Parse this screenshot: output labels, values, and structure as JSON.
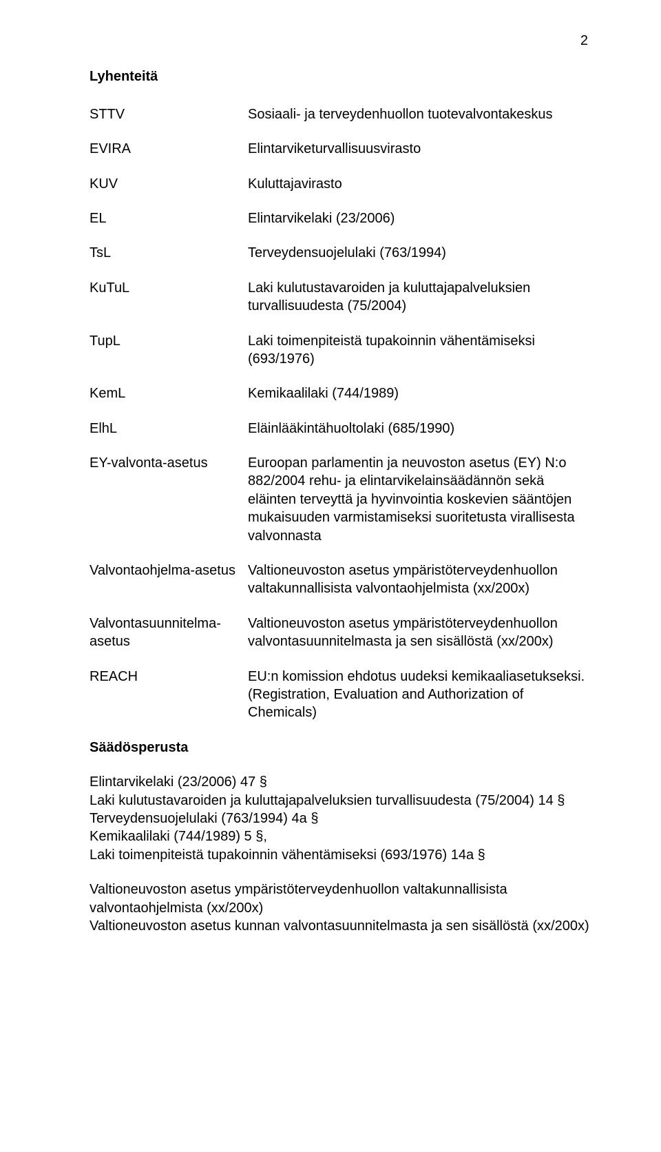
{
  "pageNumber": "2",
  "headings": {
    "abbrev": "Lyhenteitä",
    "basis": "Säädösperusta"
  },
  "abbrevs": [
    {
      "term": "STTV",
      "desc": "Sosiaali- ja terveydenhuollon tuotevalvontakeskus"
    },
    {
      "term": "EVIRA",
      "desc": "Elintarviketurvallisuusvirasto"
    },
    {
      "term": "KUV",
      "desc": "Kuluttajavirasto"
    },
    {
      "term": "EL",
      "desc": "Elintarvikelaki (23/2006)"
    },
    {
      "term": "TsL",
      "desc": "Terveydensuojelulaki (763/1994)"
    },
    {
      "term": "KuTuL",
      "desc": "Laki kulutustavaroiden ja kuluttajapalveluksien turvallisuudesta (75/2004)"
    },
    {
      "term": "TupL",
      "desc": "Laki toimenpiteistä tupakoinnin vähentämiseksi (693/1976)"
    },
    {
      "term": "KemL",
      "desc": "Kemikaalilaki (744/1989)"
    },
    {
      "term": "ElhL",
      "desc": "Eläinlääkintähuoltolaki (685/1990)"
    },
    {
      "term": "EY-valvonta-asetus",
      "desc": "Euroopan parlamentin ja neuvoston asetus (EY) N:o 882/2004 rehu- ja elintarvikelainsäädännön sekä eläinten terveyttä ja hyvinvointia koskevien sääntöjen mukaisuuden varmistamiseksi suoritetusta virallisesta valvonnasta"
    },
    {
      "term": "Valvontaohjelma-asetus",
      "desc": "Valtioneuvoston asetus ympäristöterveydenhuollon valtakunnallisista valvontaohjelmista (xx/200x)"
    },
    {
      "term": "Valvontasuunnitelma-asetus",
      "desc": "Valtioneuvoston asetus ympäristöterveydenhuollon valvontasuunnitelmasta ja sen sisällöstä (xx/200x)"
    },
    {
      "term": "REACH",
      "desc": "EU:n komission ehdotus uudeksi kemikaaliasetukseksi. (Registration, Evaluation and Authorization of Chemicals)"
    }
  ],
  "basis": {
    "block1": {
      "l1": "Elintarvikelaki (23/2006) 47 §",
      "l2": "Laki kulutustavaroiden ja kuluttajapalveluksien turvallisuudesta (75/2004) 14 §",
      "l3": "Terveydensuojelulaki (763/1994) 4a §",
      "l4": "Kemikaalilaki (744/1989) 5 §,",
      "l5": "Laki toimenpiteistä tupakoinnin vähentämiseksi (693/1976) 14a §"
    },
    "block2": {
      "l1": "Valtioneuvoston asetus ympäristöterveydenhuollon valtakunnallisista valvontaohjelmista (xx/200x)",
      "l2": "Valtioneuvoston asetus kunnan valvontasuunnitelmasta ja sen sisällöstä (xx/200x)"
    }
  }
}
